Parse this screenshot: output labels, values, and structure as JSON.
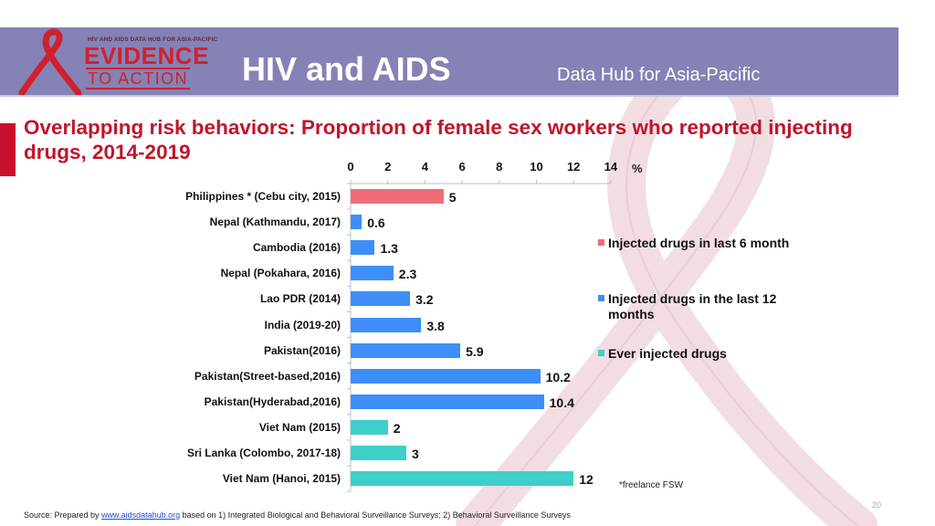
{
  "header": {
    "logo_top_text": "HIV AND AIDS DATA HUB FOR ASIA-PACIFIC",
    "logo_line1": "EVIDENCE",
    "logo_line2": "TO ACTION",
    "brand_title": "HIV and AIDS",
    "brand_subtitle": "Data Hub for Asia-Pacific"
  },
  "colors": {
    "header_bg": "#8582b5",
    "title_red": "#c0152a",
    "series_6m": "#f06c78",
    "series_12m": "#3d8ef8",
    "series_ever": "#3ecfcb"
  },
  "chart_data": {
    "type": "bar",
    "orientation": "horizontal",
    "title": "Overlapping risk behaviors: Proportion of female sex workers who reported injecting drugs, 2014-2019",
    "x_unit": "%",
    "xlim": [
      0,
      14
    ],
    "x_ticks": [
      "0",
      "2",
      "4",
      "6",
      "8",
      "10",
      "12",
      "14"
    ],
    "legend_position": "right",
    "legend": [
      {
        "name": "Injected drugs in last 6 month",
        "color": "#f06c78"
      },
      {
        "name": "Injected drugs in the last 12 months",
        "color": "#3d8ef8"
      },
      {
        "name": "Ever injected drugs",
        "color": "#3ecfcb"
      }
    ],
    "bars": [
      {
        "category": "Philippines * (Cebu city, 2015)",
        "value": 5,
        "label": "5",
        "series": 0
      },
      {
        "category": "Nepal (Kathmandu, 2017)",
        "value": 0.6,
        "label": "0.6",
        "series": 1
      },
      {
        "category": "Cambodia (2016)",
        "value": 1.3,
        "label": "1.3",
        "series": 1
      },
      {
        "category": "Nepal (Pokahara, 2016)",
        "value": 2.3,
        "label": "2.3",
        "series": 1
      },
      {
        "category": "Lao PDR (2014)",
        "value": 3.2,
        "label": "3.2",
        "series": 1
      },
      {
        "category": "India (2019-20)",
        "value": 3.8,
        "label": "3.8",
        "series": 1
      },
      {
        "category": "Pakistan(2016)",
        "value": 5.9,
        "label": "5.9",
        "series": 1
      },
      {
        "category": "Pakistan(Street-based,2016)",
        "value": 10.2,
        "label": "10.2",
        "series": 1
      },
      {
        "category": "Pakistan(Hyderabad,2016)",
        "value": 10.4,
        "label": "10.4",
        "series": 1
      },
      {
        "category": "Viet Nam (2015)",
        "value": 2,
        "label": "2",
        "series": 2
      },
      {
        "category": "Sri Lanka (Colombo, 2017-18)",
        "value": 3,
        "label": "3",
        "series": 2
      },
      {
        "category": "Viet Nam (Hanoi, 2015)",
        "value": 12,
        "label": "12",
        "series": 2
      }
    ],
    "footnote": "*freelance FSW"
  },
  "footer": {
    "source_prefix": "Source: Prepared by ",
    "source_link": "www.aidsdatahub.org",
    "source_suffix": " based on 1) Integrated Biological and Behavioral Surveillance Surveys; 2) Behavioral Surveillance Surveys",
    "page_number": "20"
  }
}
